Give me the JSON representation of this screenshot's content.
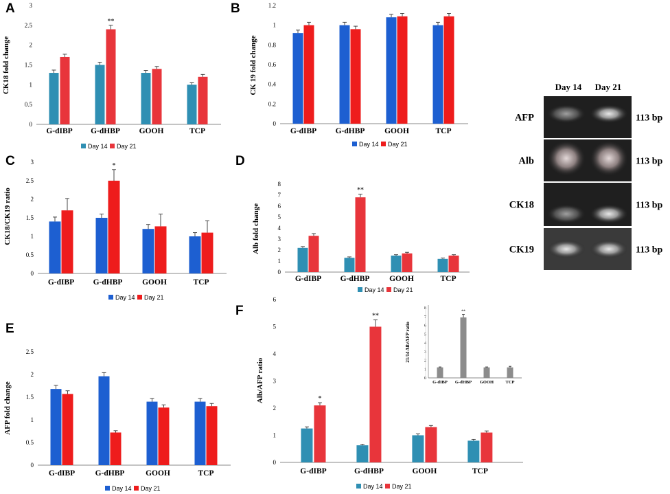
{
  "chart_data": [
    {
      "id": "A",
      "type": "bar",
      "panel_label": "A",
      "categories": [
        "G-dIBP",
        "G-dHBP",
        "GOOH",
        "TCP"
      ],
      "series": [
        {
          "name": "Day 14",
          "color": "#2f8fb3",
          "values": [
            1.3,
            1.5,
            1.3,
            1.0
          ],
          "errors": [
            0.07,
            0.07,
            0.06,
            0.05
          ]
        },
        {
          "name": "Day 21",
          "color": "#e8353b",
          "values": [
            1.7,
            2.4,
            1.4,
            1.2
          ],
          "errors": [
            0.07,
            0.1,
            0.06,
            0.06
          ]
        }
      ],
      "significance": [
        "",
        "**",
        "",
        ""
      ],
      "ylabel": "CK18 fold change",
      "ylim": [
        0,
        3
      ],
      "yticks": [
        "0",
        "0.5",
        "1",
        "1.5",
        "2",
        "2.5",
        "3"
      ]
    },
    {
      "id": "B",
      "type": "bar",
      "panel_label": "B",
      "categories": [
        "G-dIBP",
        "G-dHBP",
        "GOOH",
        "TCP"
      ],
      "series": [
        {
          "name": "Day 14",
          "color": "#1d5fd1",
          "values": [
            0.92,
            1.0,
            1.08,
            1.0
          ],
          "errors": [
            0.03,
            0.03,
            0.03,
            0.03
          ]
        },
        {
          "name": "Day 21",
          "color": "#ee1c1c",
          "values": [
            1.0,
            0.96,
            1.09,
            1.09
          ],
          "errors": [
            0.03,
            0.03,
            0.03,
            0.03
          ]
        }
      ],
      "significance": [
        "",
        "",
        "",
        ""
      ],
      "ylabel": "CK 19 fold change",
      "ylim": [
        0,
        1.2
      ],
      "yticks": [
        "0",
        "0.2",
        "0.4",
        "0.6",
        "0.8",
        "1",
        "1.2"
      ]
    },
    {
      "id": "C",
      "type": "bar",
      "panel_label": "C",
      "categories": [
        "G-dIBP",
        "G-dHBP",
        "GOOH",
        "TCP"
      ],
      "series": [
        {
          "name": "Day 14",
          "color": "#1d5fd1",
          "values": [
            1.4,
            1.5,
            1.2,
            1.0
          ],
          "errors": [
            0.12,
            0.1,
            0.12,
            0.1
          ]
        },
        {
          "name": "Day 21",
          "color": "#ee1c1c",
          "values": [
            1.7,
            2.5,
            1.27,
            1.1
          ],
          "errors": [
            0.32,
            0.3,
            0.33,
            0.32
          ]
        }
      ],
      "significance": [
        "",
        "*",
        "",
        ""
      ],
      "ylabel": "CK18/CK19 ratio",
      "ylim": [
        0,
        3
      ],
      "yticks": [
        "0",
        "0.5",
        "1",
        "1.5",
        "2",
        "2.5",
        "3"
      ]
    },
    {
      "id": "D",
      "type": "bar",
      "panel_label": "D",
      "categories": [
        "G-dIBP",
        "G-dHBP",
        "GOOH",
        "TCP"
      ],
      "series": [
        {
          "name": "Day 14",
          "color": "#2f8fb3",
          "values": [
            2.2,
            1.3,
            1.5,
            1.2
          ],
          "errors": [
            0.12,
            0.08,
            0.08,
            0.08
          ]
        },
        {
          "name": "Day 21",
          "color": "#e8353b",
          "values": [
            3.3,
            6.8,
            1.7,
            1.5
          ],
          "errors": [
            0.2,
            0.28,
            0.1,
            0.08
          ]
        }
      ],
      "significance": [
        "",
        "**",
        "",
        ""
      ],
      "ylabel": "Alb fold change",
      "ylim": [
        0,
        8
      ],
      "yticks": [
        "0",
        "1",
        "2",
        "3",
        "4",
        "5",
        "6",
        "7",
        "8"
      ]
    },
    {
      "id": "E",
      "type": "bar",
      "panel_label": "E",
      "categories": [
        "G-dIBP",
        "G-dHBP",
        "GOOH",
        "TCP"
      ],
      "series": [
        {
          "name": "Day 14",
          "color": "#1d5fd1",
          "values": [
            1.68,
            1.96,
            1.4,
            1.4
          ],
          "errors": [
            0.08,
            0.08,
            0.07,
            0.07
          ]
        },
        {
          "name": "Day 21",
          "color": "#ee1c1c",
          "values": [
            1.57,
            0.72,
            1.27,
            1.3
          ],
          "errors": [
            0.07,
            0.04,
            0.06,
            0.06
          ]
        }
      ],
      "significance": [
        "",
        "",
        "",
        ""
      ],
      "ylabel": "AFP fold change",
      "ylim": [
        0,
        2.5
      ],
      "yticks": [
        "0",
        "0.5",
        "1",
        "1.5",
        "2",
        "2.5"
      ]
    },
    {
      "id": "F",
      "type": "bar",
      "panel_label": "F",
      "categories": [
        "G-dIBP",
        "G-dHBP",
        "GOOH",
        "TCP"
      ],
      "series": [
        {
          "name": "Day 14",
          "color": "#2f8fb3",
          "values": [
            1.25,
            0.63,
            1.0,
            0.8
          ],
          "errors": [
            0.06,
            0.04,
            0.05,
            0.05
          ]
        },
        {
          "name": "Day 21",
          "color": "#e8353b",
          "values": [
            2.1,
            5.0,
            1.3,
            1.1
          ],
          "errors": [
            0.1,
            0.25,
            0.06,
            0.06
          ]
        }
      ],
      "significance": [
        "*",
        "**",
        "",
        ""
      ],
      "ylabel": "Alb/AFP  ratio",
      "ylim": [
        0,
        6
      ],
      "yticks": [
        "0",
        "1",
        "2",
        "3",
        "4",
        "5",
        "6"
      ]
    },
    {
      "id": "F-inset",
      "type": "bar",
      "categories": [
        "G-dIBP",
        "G-dHBP",
        "GOOH",
        "TCP"
      ],
      "series": [
        {
          "name": "21/14 ratio",
          "color": "#8c8c8c",
          "values": [
            1.2,
            6.9,
            1.2,
            1.2
          ],
          "errors": [
            0.05,
            0.35,
            0.05,
            0.12
          ]
        }
      ],
      "significance": [
        "",
        "**",
        "",
        ""
      ],
      "ylabel": "21/14 Alb/AFP ratio",
      "ylim": [
        0,
        8
      ],
      "yticks": [
        "0",
        "1",
        "2",
        "3",
        "4",
        "5",
        "6",
        "7",
        "8"
      ]
    }
  ],
  "gel": {
    "headers": [
      "Day 14",
      "Day 21"
    ],
    "rows": [
      {
        "gene": "AFP",
        "size": "113 bp"
      },
      {
        "gene": "Alb",
        "size": "113 bp"
      },
      {
        "gene": "CK18",
        "size": "113 bp"
      },
      {
        "gene": "CK19",
        "size": "113 bp"
      }
    ]
  }
}
